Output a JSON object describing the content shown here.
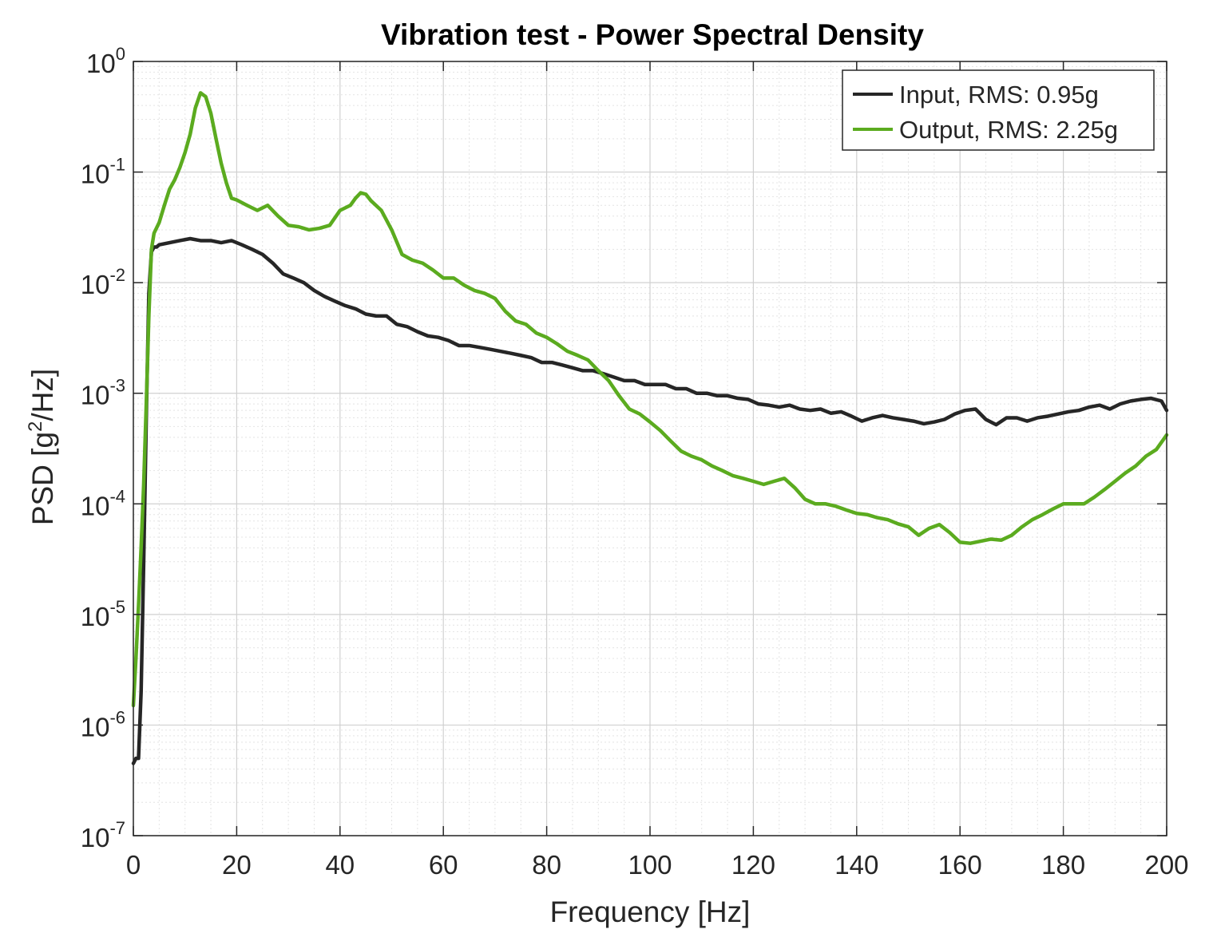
{
  "chart_data": {
    "type": "line",
    "title": "Vibration test - Power Spectral Density",
    "xlabel": "Frequency [Hz]",
    "ylabel_main": "PSD  [g",
    "ylabel_sup": "2",
    "ylabel_tail": "/Hz]",
    "xlim": [
      0,
      200
    ],
    "ylim": [
      1e-07,
      1
    ],
    "yscale": "log",
    "grid": true,
    "minor_grid": true,
    "legend_position": "top-right",
    "x_ticks": [
      0,
      20,
      40,
      60,
      80,
      100,
      120,
      140,
      160,
      180,
      200
    ],
    "x_tick_labels": [
      "0",
      "20",
      "40",
      "60",
      "80",
      "100",
      "120",
      "140",
      "160",
      "180",
      "200"
    ],
    "y_ticks": [
      {
        "value": 1,
        "base": "10",
        "exp": "0"
      },
      {
        "value": 0.1,
        "base": "10",
        "exp": "-1"
      },
      {
        "value": 0.01,
        "base": "10",
        "exp": "-2"
      },
      {
        "value": 0.001,
        "base": "10",
        "exp": "-3"
      },
      {
        "value": 0.0001,
        "base": "10",
        "exp": "-4"
      },
      {
        "value": 1e-05,
        "base": "10",
        "exp": "-5"
      },
      {
        "value": 1e-06,
        "base": "10",
        "exp": "-6"
      },
      {
        "value": 1e-07,
        "base": "10",
        "exp": "-7"
      }
    ],
    "series": [
      {
        "name": "Input, RMS: 0.95g",
        "color": "#262626",
        "x": [
          0,
          0.5,
          1,
          1.5,
          2,
          2.5,
          3,
          3.5,
          4,
          4.5,
          5,
          7,
          9,
          11,
          13,
          15,
          17,
          19,
          21,
          23,
          25,
          27,
          29,
          31,
          33,
          35,
          37,
          39,
          41,
          43,
          45,
          47,
          49,
          51,
          53,
          55,
          57,
          59,
          61,
          63,
          65,
          67,
          69,
          71,
          73,
          75,
          77,
          79,
          81,
          83,
          85,
          87,
          89,
          91,
          93,
          95,
          97,
          99,
          101,
          103,
          105,
          107,
          109,
          111,
          113,
          115,
          117,
          119,
          121,
          123,
          125,
          127,
          129,
          131,
          133,
          135,
          137,
          139,
          141,
          143,
          145,
          147,
          149,
          151,
          153,
          155,
          157,
          159,
          161,
          163,
          165,
          167,
          169,
          171,
          173,
          175,
          177,
          179,
          181,
          183,
          185,
          187,
          189,
          191,
          193,
          195,
          197,
          199,
          200
        ],
        "y": [
          4.5e-07,
          5e-07,
          5e-07,
          2e-06,
          3e-05,
          0.0006,
          0.008,
          0.019,
          0.021,
          0.021,
          0.022,
          0.023,
          0.024,
          0.025,
          0.024,
          0.024,
          0.023,
          0.024,
          0.022,
          0.02,
          0.018,
          0.015,
          0.012,
          0.011,
          0.01,
          0.0085,
          0.0075,
          0.0068,
          0.0062,
          0.0058,
          0.0052,
          0.005,
          0.005,
          0.0042,
          0.004,
          0.0036,
          0.0033,
          0.0032,
          0.003,
          0.0027,
          0.0027,
          0.0026,
          0.0025,
          0.0024,
          0.0023,
          0.0022,
          0.0021,
          0.0019,
          0.0019,
          0.0018,
          0.0017,
          0.0016,
          0.0016,
          0.0015,
          0.0014,
          0.0013,
          0.0013,
          0.0012,
          0.0012,
          0.0012,
          0.0011,
          0.0011,
          0.001,
          0.001,
          0.00095,
          0.00095,
          0.0009,
          0.00088,
          0.0008,
          0.00078,
          0.00075,
          0.00078,
          0.00072,
          0.0007,
          0.00072,
          0.00066,
          0.00068,
          0.00062,
          0.00056,
          0.0006,
          0.00063,
          0.0006,
          0.00058,
          0.00056,
          0.00053,
          0.00055,
          0.00058,
          0.00065,
          0.0007,
          0.00072,
          0.00058,
          0.00052,
          0.0006,
          0.0006,
          0.00056,
          0.0006,
          0.00062,
          0.00065,
          0.00068,
          0.0007,
          0.00075,
          0.00078,
          0.00072,
          0.0008,
          0.00085,
          0.00088,
          0.0009,
          0.00085,
          0.0007
        ]
      },
      {
        "name": "Output, RMS: 2.25g",
        "color": "#5bab1f",
        "x": [
          0,
          0.5,
          1,
          1.5,
          2,
          2.5,
          3,
          3.5,
          4,
          5,
          6,
          7,
          8,
          9,
          10,
          11,
          12,
          13,
          14,
          15,
          16,
          17,
          18,
          19,
          20,
          22,
          24,
          26,
          28,
          30,
          32,
          34,
          36,
          38,
          40,
          42,
          43,
          44,
          45,
          46,
          48,
          50,
          52,
          54,
          56,
          58,
          60,
          62,
          64,
          66,
          68,
          70,
          72,
          74,
          76,
          78,
          80,
          82,
          84,
          86,
          88,
          90,
          92,
          94,
          96,
          98,
          100,
          102,
          104,
          106,
          108,
          110,
          112,
          114,
          116,
          118,
          120,
          122,
          124,
          126,
          128,
          130,
          132,
          134,
          136,
          138,
          140,
          142,
          144,
          146,
          148,
          150,
          152,
          154,
          156,
          158,
          160,
          162,
          164,
          166,
          168,
          170,
          172,
          174,
          176,
          178,
          180,
          182,
          184,
          186,
          188,
          190,
          192,
          194,
          196,
          198,
          200
        ],
        "y": [
          1.5e-06,
          4e-06,
          1.2e-05,
          4e-05,
          0.00015,
          0.0008,
          0.005,
          0.02,
          0.028,
          0.035,
          0.05,
          0.07,
          0.085,
          0.11,
          0.15,
          0.22,
          0.38,
          0.52,
          0.48,
          0.34,
          0.2,
          0.12,
          0.08,
          0.058,
          0.056,
          0.05,
          0.045,
          0.05,
          0.04,
          0.033,
          0.032,
          0.03,
          0.031,
          0.033,
          0.045,
          0.05,
          0.058,
          0.065,
          0.063,
          0.055,
          0.045,
          0.03,
          0.018,
          0.016,
          0.015,
          0.013,
          0.011,
          0.011,
          0.0095,
          0.0085,
          0.008,
          0.0072,
          0.0055,
          0.0045,
          0.0042,
          0.0035,
          0.0032,
          0.0028,
          0.0024,
          0.0022,
          0.002,
          0.0016,
          0.0013,
          0.00095,
          0.00072,
          0.00065,
          0.00055,
          0.00046,
          0.00037,
          0.0003,
          0.00027,
          0.00025,
          0.00022,
          0.0002,
          0.00018,
          0.00017,
          0.00016,
          0.00015,
          0.00016,
          0.00017,
          0.00014,
          0.00011,
          0.0001,
          0.0001,
          9.5e-05,
          8.8e-05,
          8.2e-05,
          8e-05,
          7.5e-05,
          7.2e-05,
          6.6e-05,
          6.2e-05,
          5.2e-05,
          6e-05,
          6.5e-05,
          5.5e-05,
          4.5e-05,
          4.4e-05,
          4.6e-05,
          4.8e-05,
          4.7e-05,
          5.2e-05,
          6.2e-05,
          7.2e-05,
          8e-05,
          9e-05,
          0.0001,
          0.0001,
          0.0001,
          0.000115,
          0.000135,
          0.00016,
          0.00019,
          0.00022,
          0.00027,
          0.00031,
          0.00042
        ]
      }
    ]
  }
}
